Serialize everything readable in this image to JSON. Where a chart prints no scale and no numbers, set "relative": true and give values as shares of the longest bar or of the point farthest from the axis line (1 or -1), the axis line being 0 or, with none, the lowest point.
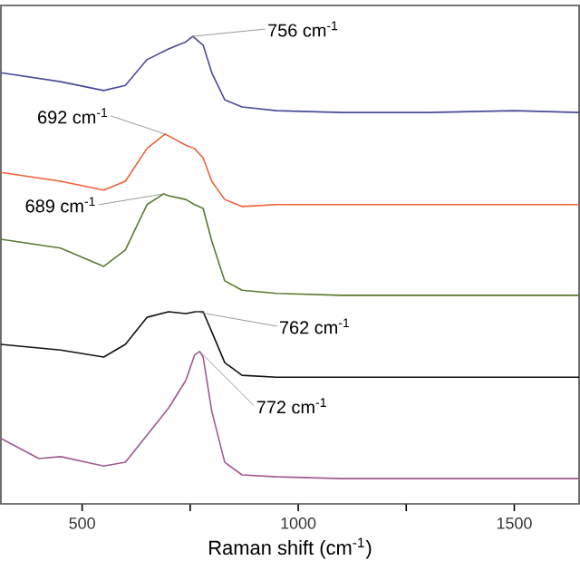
{
  "chart_data": {
    "type": "line",
    "relative": true,
    "xlabel": "Raman shift (cm$^{-1}$)",
    "xlim": [
      312,
      1650
    ],
    "xticks": [
      500,
      {
        "value": 750,
        "label": null
      },
      1000,
      {
        "value": 1250,
        "label": null
      },
      1500
    ],
    "series": [
      {
        "color": "#4a4a9a",
        "x": [
          312,
          450,
          550,
          600,
          650,
          700,
          740,
          756,
          780,
          800,
          830,
          870,
          950,
          1100,
          1300,
          1500,
          1650
        ],
        "values": [
          0.922,
          0.903,
          0.884,
          0.895,
          0.95,
          0.973,
          0.988,
          1.0,
          0.981,
          0.922,
          0.864,
          0.849,
          0.841,
          0.837,
          0.837,
          0.841,
          0.837
        ]
      },
      {
        "color": "#f0603a",
        "x": [
          312,
          450,
          550,
          600,
          650,
          692,
          740,
          760,
          780,
          800,
          830,
          870,
          950,
          1100,
          1300,
          1500,
          1650
        ],
        "values": [
          0.709,
          0.69,
          0.671,
          0.69,
          0.76,
          0.791,
          0.767,
          0.76,
          0.74,
          0.69,
          0.651,
          0.636,
          0.64,
          0.64,
          0.64,
          0.64,
          0.64
        ]
      },
      {
        "color": "#5a7a30",
        "x": [
          312,
          450,
          550,
          600,
          650,
          689,
          700,
          740,
          760,
          780,
          800,
          830,
          870,
          950,
          1100,
          1300,
          1500,
          1650
        ],
        "values": [
          0.566,
          0.547,
          0.508,
          0.543,
          0.64,
          0.663,
          0.659,
          0.651,
          0.64,
          0.632,
          0.562,
          0.477,
          0.457,
          0.45,
          0.446,
          0.446,
          0.446,
          0.446
        ]
      },
      {
        "color": "#111111",
        "x": [
          312,
          450,
          550,
          600,
          650,
          700,
          740,
          762,
          780,
          800,
          830,
          870,
          950,
          1100,
          1300,
          1500,
          1650
        ],
        "values": [
          0.341,
          0.329,
          0.314,
          0.341,
          0.399,
          0.411,
          0.407,
          0.411,
          0.411,
          0.368,
          0.302,
          0.275,
          0.271,
          0.271,
          0.271,
          0.271,
          0.271
        ]
      },
      {
        "color": "#a05a90",
        "x": [
          312,
          400,
          450,
          550,
          600,
          650,
          700,
          740,
          760,
          772,
          780,
          800,
          830,
          870,
          950,
          1100,
          1300,
          1500,
          1650
        ],
        "values": [
          0.14,
          0.097,
          0.101,
          0.081,
          0.089,
          0.147,
          0.205,
          0.264,
          0.318,
          0.326,
          0.314,
          0.198,
          0.089,
          0.062,
          0.058,
          0.054,
          0.054,
          0.054,
          0.054
        ]
      }
    ],
    "annotations": [
      {
        "text": "756 cm$^{-1}$",
        "x": 756,
        "y": 1.0
      },
      {
        "text": "692 cm$^{-1}$",
        "x": 692,
        "y": 0.791
      },
      {
        "text": "689 cm$^{-1}$",
        "x": 689,
        "y": 0.663
      },
      {
        "text": "762 cm$^{-1}$",
        "x": 762,
        "y": 0.411
      },
      {
        "text": "772 cm$^{-1}$",
        "x": 772,
        "y": 0.326
      }
    ]
  }
}
